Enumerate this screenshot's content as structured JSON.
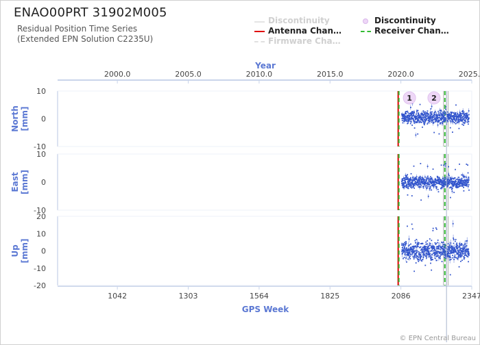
{
  "header": {
    "title": "ENAO00PRT 31902M005",
    "subtitle_1": "Residual Position Time Series",
    "subtitle_2": "(Extended EPN Solution C2235U)"
  },
  "legend": [
    {
      "label": "Discontinuity",
      "color": "#d8d8d8",
      "style": "line-faded",
      "active": false
    },
    {
      "label": "Discontinuity",
      "color": "#e3c6f0",
      "style": "dot",
      "active": true
    },
    {
      "label": "Antenna Chan…",
      "color": "#e00000",
      "style": "line",
      "active": true
    },
    {
      "label": "Receiver Chan…",
      "color": "#33bb33",
      "style": "dashed",
      "active": true
    },
    {
      "label": "Firmware Cha…",
      "color": "#d8d8d8",
      "style": "dashed-faded",
      "active": false
    }
  ],
  "credit": "© EPN Central Bureau",
  "chart_data": {
    "type": "scatter",
    "x_top": {
      "label": "Year",
      "ticks": [
        "2000.0",
        "2005.0",
        "2010.0",
        "2015.0",
        "2020.0",
        "2025.0"
      ],
      "tick_values": [
        1042,
        1303,
        1564,
        1825,
        2086,
        2347
      ]
    },
    "x_bottom": {
      "label": "GPS Week",
      "ticks": [
        "1042",
        "1303",
        "1564",
        "1825",
        "2086",
        "2347"
      ],
      "xlim": [
        822,
        2347
      ]
    },
    "panels": [
      {
        "name": "North [mm]",
        "label_line1": "North",
        "label_line2": "[mm]",
        "ylim": [
          -10,
          10
        ],
        "yticks": [
          "10",
          "0",
          "-10"
        ],
        "data_range": [
          2089,
          2337
        ],
        "level": 0.5,
        "spread": 2.2,
        "outlier_max": 6
      },
      {
        "name": "East [mm]",
        "label_line1": "East",
        "label_line2": "[mm]",
        "ylim": [
          -10,
          10
        ],
        "yticks": [
          "10",
          "0",
          "-10"
        ],
        "data_range": [
          2089,
          2337
        ],
        "level": 0.0,
        "spread": 2.0,
        "outlier_max": 7
      },
      {
        "name": "Up [mm]",
        "label_line1": "Up",
        "label_line2": "[mm]",
        "ylim": [
          -20,
          20
        ],
        "yticks": [
          "20",
          "10",
          "0",
          "-10",
          "-20"
        ],
        "data_range": [
          2089,
          2337
        ],
        "level": 0.0,
        "spread": 5.0,
        "outlier_max": 16
      }
    ],
    "events": [
      {
        "type": "antenna_change",
        "week": 2076,
        "color": "#e00000"
      },
      {
        "type": "receiver_change",
        "week": 2076,
        "color": "#33bb33"
      },
      {
        "type": "receiver_change",
        "week": 2248,
        "color": "#33bb33"
      }
    ],
    "discontinuities": [
      {
        "label": "1",
        "week": 2110
      },
      {
        "label": "2",
        "week": 2208
      }
    ],
    "grey_lines": [
      2243,
      2254,
      2260
    ],
    "series_color": "#3355cc"
  }
}
